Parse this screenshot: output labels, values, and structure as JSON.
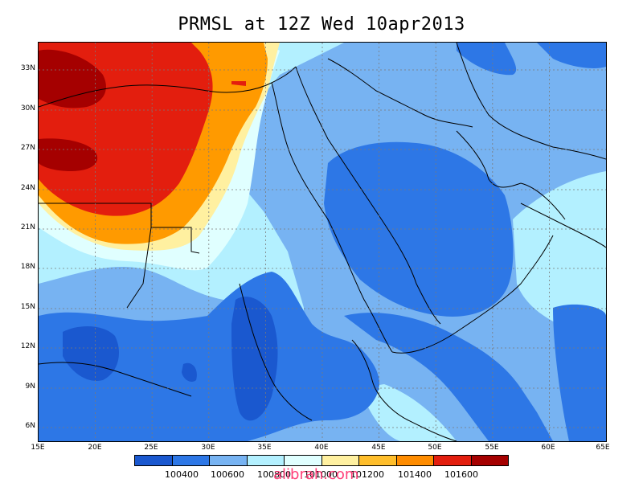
{
  "title": "PRMSL at 12Z Wed 10apr2013",
  "map": {
    "lat_labels": [
      "33N",
      "30N",
      "27N",
      "24N",
      "21N",
      "18N",
      "15N",
      "12N",
      "9N",
      "6N"
    ],
    "lon_labels": [
      "15E",
      "20E",
      "25E",
      "30E",
      "35E",
      "40E",
      "45E",
      "50E",
      "55E",
      "60E",
      "65E"
    ],
    "gridlines": "dotted"
  },
  "legend": {
    "colors": [
      "#1a58cf",
      "#2d77e6",
      "#77b3f2",
      "#b3f0ff",
      "#e0ffff",
      "#fff0a0",
      "#ffbe2b",
      "#ff8c00",
      "#e31e0e",
      "#a50000"
    ],
    "labels": [
      "100400",
      "100600",
      "100800",
      "101000",
      "101200",
      "101400",
      "101600"
    ]
  },
  "watermark": "alibrah.com"
}
